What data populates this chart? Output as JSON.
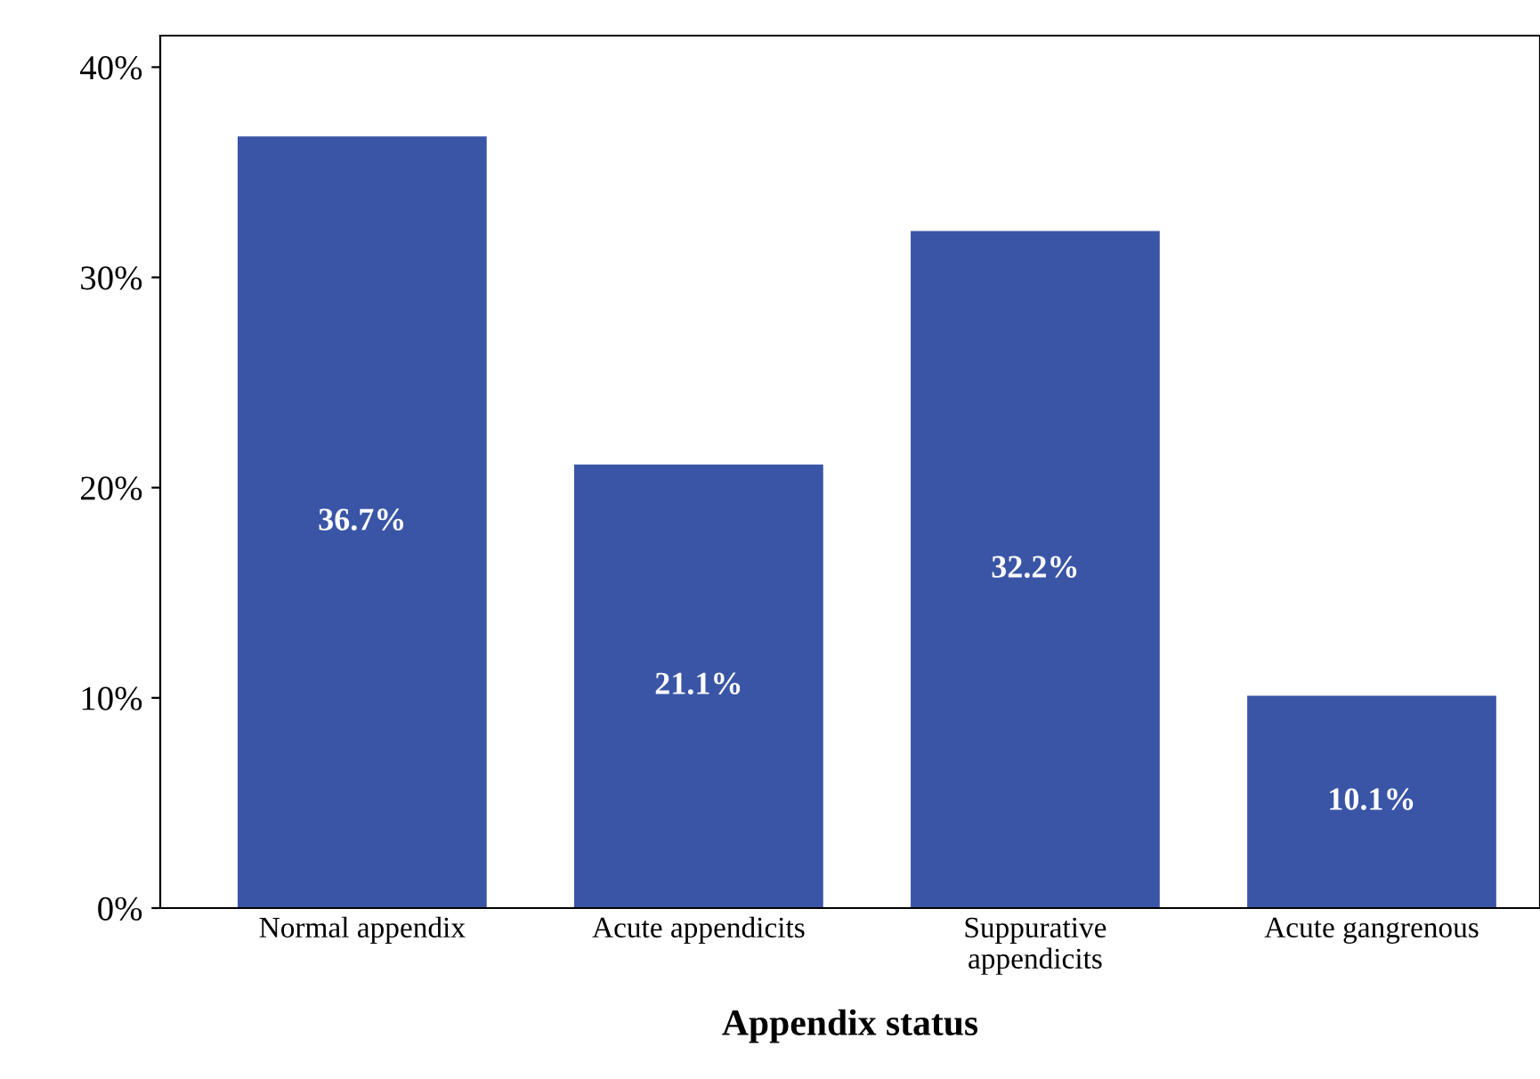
{
  "chart_data": {
    "type": "bar",
    "xlabel": "Appendix status",
    "categories": [
      "Normal appendix",
      "Acute appendicits",
      "Suppurative\nappendicits",
      "Acute gangrenous"
    ],
    "values": [
      36.7,
      21.1,
      32.2,
      10.1
    ],
    "value_labels": [
      "36.7%",
      "21.1%",
      "32.2%",
      "10.1%"
    ],
    "color": "#3a55a6",
    "ylim": [
      0,
      41.5
    ],
    "yticks": [
      {
        "value": 0,
        "label": "0%"
      },
      {
        "value": 10,
        "label": "10%"
      },
      {
        "value": 20,
        "label": "20%"
      },
      {
        "value": 30,
        "label": "30%"
      },
      {
        "value": 40,
        "label": "40%"
      }
    ],
    "grid": false
  }
}
